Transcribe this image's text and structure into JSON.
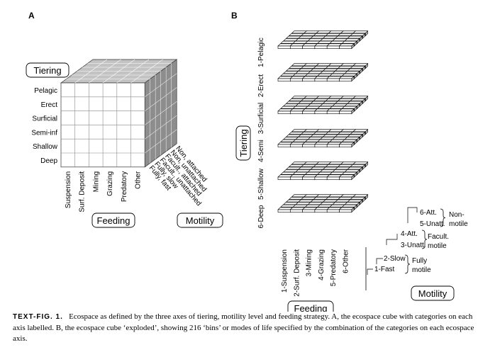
{
  "panel_a": {
    "letter": "A",
    "tiering_title": "Tiering",
    "tiering_labels": [
      "Pelagic",
      "Erect",
      "Surficial",
      "Semi-inf",
      "Shallow",
      "Deep"
    ],
    "feeding_title": "Feeding",
    "feeding_labels": [
      "Suspension",
      "Surf. Deposit",
      "Mining",
      "Grazing",
      "Predatory",
      "Other"
    ],
    "motility_title": "Motility",
    "motility_labels": [
      "Non, attached",
      "Non, unattached",
      "Facult., attached",
      "Facult., unattached",
      "Fully, slow",
      "Fully, fast"
    ]
  },
  "panel_b": {
    "letter": "B",
    "tiering_title": "Tiering",
    "tiering_labels": [
      "1-Pelagic",
      "2-Erect",
      "3-Surficial",
      "4-Semi",
      "5-Shallow",
      "6-Deep"
    ],
    "feeding_title": "Feeding",
    "feeding_labels": [
      "1-Suspension",
      "2-Surf. Deposit",
      "3-Mining",
      "4-Grazing",
      "5-Predatory",
      "6-Other"
    ],
    "motility_title": "Motility",
    "motility_labels": [
      "6-Att.",
      "5-Unatt.",
      "4-Att.",
      "3-Unatt.",
      "2-Slow",
      "1-Fast"
    ],
    "motility_groups": [
      "Non-\nmotile",
      "Facult.\nmotile",
      "Fully\nmotile"
    ]
  },
  "caption": {
    "lead": "TEXT-FIG. 1.",
    "text": "Ecospace as defined by the three axes of tiering, motility level and feeding strategy. A, the ecospace cube with categories on each axis labelled. B, the ecospace cube ‘exploded’, showing 216 ‘bins’ or modes of life specified by the combination of the categories on each ecospace axis."
  }
}
